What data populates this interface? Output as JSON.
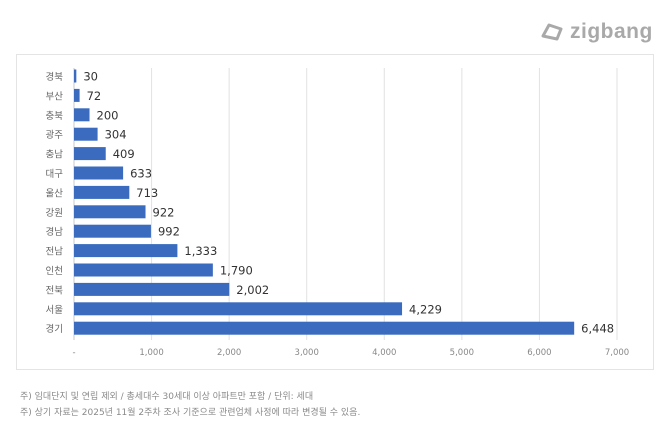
{
  "logo": {
    "text": "zigbang"
  },
  "chart_data": {
    "type": "bar",
    "orientation": "horizontal",
    "categories": [
      "경북",
      "부산",
      "충북",
      "광주",
      "충남",
      "대구",
      "울산",
      "강원",
      "경남",
      "전남",
      "인천",
      "전북",
      "서울",
      "경기"
    ],
    "values": [
      30,
      72,
      200,
      304,
      409,
      633,
      713,
      922,
      992,
      1333,
      1790,
      2002,
      4229,
      6448
    ],
    "data_labels": [
      "30",
      "72",
      "200",
      "304",
      "409",
      "633",
      "713",
      "922",
      "992",
      "1,333",
      "1,790",
      "2,002",
      "4,229",
      "6,448"
    ],
    "xlim": [
      0,
      7000
    ],
    "x_ticks": [
      0,
      1000,
      2000,
      3000,
      4000,
      5000,
      6000,
      7000
    ],
    "x_tick_labels": [
      "-",
      "1,000",
      "2,000",
      "3,000",
      "4,000",
      "5,000",
      "6,000",
      "7,000"
    ],
    "grid": "vertical",
    "bar_color": "#3a6bbf"
  },
  "notes": [
    "주) 임대단지 및 연립 제외 / 총세대수 30세대 이상 아파트만 포함 / 단위: 세대",
    "주) 상기 자료는 2025년 11월 2주차 조사 기준으로 관련업체 사정에 따라 변경될 수 있음."
  ]
}
